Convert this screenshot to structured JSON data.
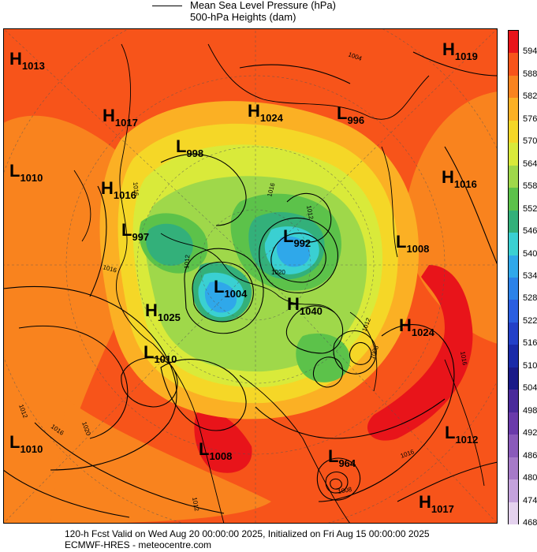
{
  "legend": {
    "mslp_label": "Mean Sea Level Pressure (hPa)",
    "heights_label": "500-hPa Heights (dam)"
  },
  "colorbar": {
    "values": [
      "594",
      "588",
      "582",
      "576",
      "570",
      "564",
      "558",
      "552",
      "546",
      "540",
      "534",
      "528",
      "522",
      "516",
      "510",
      "504",
      "498",
      "492",
      "486",
      "480",
      "474",
      "468"
    ],
    "colors": [
      "#e8141a",
      "#f7541a",
      "#f9831e",
      "#fbb024",
      "#f5d727",
      "#d9ea3a",
      "#9fd84a",
      "#5cc24a",
      "#33b07a",
      "#3ad0d2",
      "#2fa8ea",
      "#2b82e8",
      "#2a5ee0",
      "#2340c8",
      "#1a2aa8",
      "#1a1a88",
      "#4a2a9a",
      "#6a3aaa",
      "#8a5aba",
      "#a67ac8",
      "#c4a2dc",
      "#e4d2ee"
    ]
  },
  "pressure_centers": [
    {
      "type": "H",
      "value": "1013"
    },
    {
      "type": "H",
      "value": "1017"
    },
    {
      "type": "H",
      "value": "1024"
    },
    {
      "type": "L",
      "value": "996"
    },
    {
      "type": "H",
      "value": "1019"
    },
    {
      "type": "L",
      "value": "998"
    },
    {
      "type": "L",
      "value": "1010"
    },
    {
      "type": "H",
      "value": "1016"
    },
    {
      "type": "H",
      "value": "1016"
    },
    {
      "type": "L",
      "value": "997"
    },
    {
      "type": "L",
      "value": "992"
    },
    {
      "type": "L",
      "value": "1008"
    },
    {
      "type": "L",
      "value": "1004"
    },
    {
      "type": "H",
      "value": "1040"
    },
    {
      "type": "H",
      "value": "1025"
    },
    {
      "type": "H",
      "value": "1024"
    },
    {
      "type": "L",
      "value": "1010"
    },
    {
      "type": "L",
      "value": "1010"
    },
    {
      "type": "L",
      "value": "1008"
    },
    {
      "type": "L",
      "value": "964"
    },
    {
      "type": "L",
      "value": "1012"
    },
    {
      "type": "H",
      "value": "1017"
    }
  ],
  "isobar_labels": [
    "1004",
    "1016",
    "1012",
    "1020",
    "1016",
    "1012",
    "1016",
    "1012",
    "1016",
    "1020",
    "1012",
    "1008",
    "1012",
    "1016",
    "1008",
    "1016"
  ],
  "footer": {
    "line1": "120-h Fcst Valid on Wed Aug 20 00:00:00 2025, Initialized on Fri Aug 15 00:00:00 2025",
    "line2": "ECMWF-HRES - meteocentre.com"
  }
}
